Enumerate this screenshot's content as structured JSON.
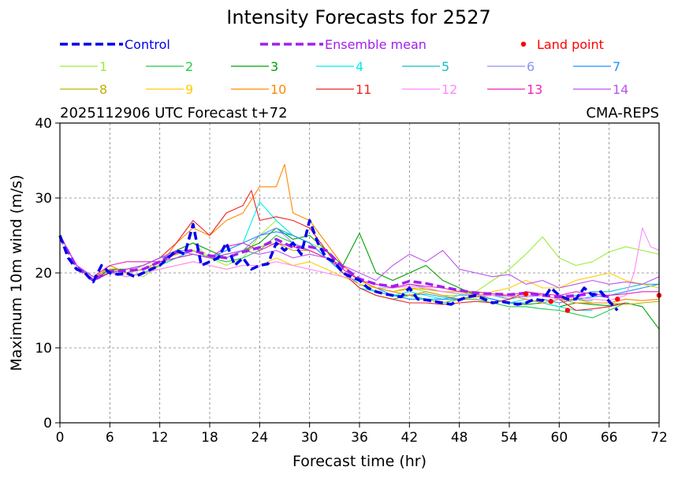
{
  "chart_data": {
    "type": "line",
    "title": "Intensity Forecasts for 2527",
    "subtitle_left": "2025112906 UTC Forecast t+72",
    "subtitle_right": "CMA-REPS",
    "xlabel": "Forecast time (hr)",
    "ylabel": "Maximum 10m wind (m/s)",
    "xlim": [
      0,
      72
    ],
    "ylim": [
      0,
      40
    ],
    "xticks": [
      0,
      6,
      12,
      18,
      24,
      30,
      36,
      42,
      48,
      54,
      60,
      66,
      72
    ],
    "yticks": [
      0,
      10,
      20,
      30,
      40
    ],
    "grid": true,
    "legend": {
      "control_label": "Control",
      "mean_label": "Ensemble mean",
      "land_label": "Land point",
      "control_color": "#0000ee",
      "mean_color": "#a020f0",
      "land_color": "#ff0000"
    },
    "control": {
      "x": [
        0,
        1,
        2,
        3,
        4,
        5,
        6,
        7,
        8,
        9,
        10,
        11,
        12,
        13,
        14,
        15,
        16,
        17,
        18,
        19,
        20,
        21,
        22,
        23,
        24,
        25,
        26,
        27,
        28,
        29,
        30,
        31,
        32,
        33,
        34,
        35,
        36,
        37,
        38,
        39,
        40,
        41,
        42,
        43,
        44,
        45,
        46,
        47,
        48,
        49,
        50,
        51,
        52,
        53,
        54,
        55,
        56,
        57,
        58,
        59,
        60,
        61,
        62,
        63,
        64,
        65,
        66,
        67
      ],
      "y": [
        25,
        22,
        20.5,
        20,
        18.8,
        21,
        20,
        19.8,
        20,
        19.5,
        20,
        20.5,
        21,
        22,
        23,
        22.5,
        26.5,
        21,
        21.5,
        22,
        24,
        21,
        22,
        20.5,
        21,
        21.2,
        24,
        23,
        24,
        22.5,
        27,
        24,
        22,
        21.5,
        20,
        19.5,
        19,
        18,
        17.5,
        17.2,
        17,
        16.8,
        18,
        16.5,
        16.4,
        16.2,
        16,
        15.8,
        16.4,
        16.8,
        17,
        16.5,
        16,
        16.2,
        16,
        15.8,
        16,
        16.5,
        16.3,
        18,
        17,
        16.5,
        16.5,
        18,
        17,
        17.5,
        16.2,
        15
      ]
    },
    "ensemble_mean": {
      "x": [
        0,
        2,
        4,
        6,
        8,
        10,
        12,
        14,
        16,
        18,
        20,
        22,
        24,
        26,
        28,
        30,
        32,
        34,
        36,
        38,
        40,
        42,
        44,
        46,
        48,
        50,
        52,
        54,
        56,
        58,
        60,
        62,
        64,
        66
      ],
      "y": [
        24.8,
        20.8,
        19,
        20.2,
        20.3,
        20.5,
        21.5,
        22.8,
        23,
        22.3,
        22,
        22.8,
        23.4,
        24.5,
        23.4,
        23.5,
        23,
        20.8,
        19.2,
        18.5,
        18.2,
        18.9,
        18.6,
        18.1,
        17.7,
        17.3,
        17.2,
        17.1,
        17.3,
        17,
        16.8,
        17,
        17.2,
        16.8
      ]
    },
    "land_points": {
      "x": [
        56,
        59,
        61,
        67,
        72
      ],
      "y": [
        17.2,
        16.2,
        15,
        16.5,
        17
      ]
    },
    "members": [
      {
        "name": "1",
        "color": "#9aee3a",
        "x": [
          0,
          2,
          4,
          6,
          8,
          10,
          12,
          14,
          16,
          18,
          20,
          22,
          24,
          26,
          28,
          30,
          32,
          34,
          36,
          38,
          40,
          42,
          44,
          46,
          48,
          50,
          52,
          54,
          56,
          58,
          60,
          62,
          64,
          66,
          68,
          70,
          72
        ],
        "y": [
          25,
          21,
          19.5,
          21,
          20,
          19.5,
          21,
          23,
          24,
          22,
          21,
          22,
          25,
          27,
          25,
          24,
          23,
          21,
          19,
          18,
          17.5,
          18,
          17.5,
          17,
          17,
          17.5,
          19,
          20.5,
          22.5,
          24.8,
          22,
          21,
          21.5,
          22.8,
          23.5,
          23,
          22.5
        ]
      },
      {
        "name": "2",
        "color": "#22cc44",
        "x": [
          0,
          2,
          4,
          6,
          8,
          10,
          12,
          14,
          16,
          18,
          20,
          22,
          24,
          26,
          28,
          30,
          32,
          34,
          36,
          38,
          40,
          42,
          44,
          46,
          48,
          50,
          52,
          54,
          56,
          58,
          60,
          62,
          64,
          66,
          68
        ],
        "y": [
          25,
          21,
          19,
          20.5,
          20,
          20.5,
          21.5,
          22,
          22.5,
          22,
          21.5,
          22,
          23,
          25,
          24,
          23,
          22,
          20,
          18,
          17,
          16.5,
          17,
          16.5,
          16,
          16.5,
          16.5,
          16,
          15.5,
          15.5,
          15.2,
          15,
          14.5,
          14,
          15,
          16
        ]
      },
      {
        "name": "3",
        "color": "#00a000",
        "x": [
          0,
          2,
          4,
          6,
          8,
          10,
          12,
          14,
          16,
          18,
          20,
          22,
          24,
          26,
          28,
          30,
          32,
          34,
          36,
          38,
          40,
          42,
          44,
          46,
          48,
          50,
          52,
          54,
          56,
          58,
          60,
          62,
          64,
          66,
          68,
          70,
          72
        ],
        "y": [
          25,
          21,
          19,
          20.5,
          20.5,
          21,
          22,
          23,
          24,
          23,
          22,
          23,
          24,
          26,
          24.5,
          25,
          23,
          21,
          25.3,
          20,
          19,
          20,
          21,
          19,
          18,
          17,
          16.5,
          16,
          15.8,
          16,
          15.5,
          16,
          15.8,
          15.6,
          16,
          15.5,
          12.5
        ]
      },
      {
        "name": "4",
        "color": "#00eeee",
        "x": [
          0,
          2,
          4,
          6,
          8,
          10,
          12,
          14,
          16,
          18,
          20,
          22,
          24,
          26,
          28,
          30,
          32,
          34,
          36,
          38,
          40,
          42,
          44,
          46,
          48,
          50,
          52,
          54,
          56,
          58,
          60,
          62,
          64
        ],
        "y": [
          25,
          21,
          19.5,
          20,
          20,
          20.5,
          21,
          22,
          22.5,
          22,
          23,
          24,
          29.5,
          27,
          25,
          24,
          22,
          20,
          18,
          17.5,
          17,
          17.5,
          17,
          16.5,
          17,
          17,
          16.5,
          16,
          16.5,
          16,
          15.5,
          15,
          15
        ]
      },
      {
        "name": "5",
        "color": "#11c0c0",
        "x": [
          0,
          2,
          4,
          6,
          8,
          10,
          12,
          14,
          16,
          18,
          20,
          22,
          24,
          26,
          28,
          30,
          32,
          34,
          36,
          38,
          40,
          42,
          44,
          46,
          48,
          50,
          52,
          54,
          56,
          58,
          60,
          62,
          64,
          66,
          68,
          70,
          72
        ],
        "y": [
          25,
          21,
          19,
          20,
          19.5,
          20,
          21,
          22,
          23,
          22,
          22.5,
          23,
          25,
          26,
          25,
          24,
          22,
          20,
          18.5,
          17.5,
          17,
          17,
          17.2,
          16.8,
          16.5,
          17,
          17,
          16.5,
          17,
          17,
          16.5,
          17,
          17.5,
          17.5,
          18,
          18.5,
          18.5
        ]
      },
      {
        "name": "6",
        "color": "#9090f0",
        "x": [
          0,
          2,
          4,
          6,
          8,
          10,
          12,
          14,
          16,
          18,
          20,
          22,
          24,
          26,
          28,
          30,
          32,
          34,
          36,
          38,
          40,
          42,
          44,
          46,
          48,
          50,
          52,
          54,
          56,
          58,
          60,
          62,
          64
        ],
        "y": [
          25,
          21,
          19.5,
          20,
          20,
          21,
          22,
          23,
          23,
          22,
          22,
          23,
          25,
          26,
          24,
          23,
          22,
          21,
          19,
          18,
          18,
          18.5,
          18,
          17.5,
          17.5,
          17,
          17.2,
          17,
          16.8,
          17,
          16.5,
          16.5,
          16.3
        ]
      },
      {
        "name": "7",
        "color": "#1e90ff",
        "x": [
          0,
          2,
          4,
          6,
          8,
          10,
          12,
          14,
          16,
          18,
          20,
          22,
          24,
          26,
          28,
          30,
          32,
          34,
          36,
          38,
          40,
          42,
          44,
          46,
          48,
          50,
          52,
          54,
          56,
          58,
          60,
          62,
          64,
          66,
          68,
          70,
          72
        ],
        "y": [
          25,
          21,
          19,
          20,
          20.5,
          21,
          22,
          22.5,
          23,
          22,
          23,
          24,
          25,
          25.5,
          25,
          24,
          22,
          20,
          18.5,
          18,
          17,
          16.5,
          16.5,
          16.5,
          16.5,
          17,
          16.5,
          16,
          16,
          16.5,
          16,
          16.5,
          16.8,
          17,
          17.5,
          18,
          18.5
        ]
      },
      {
        "name": "8",
        "color": "#bdb000",
        "x": [
          0,
          2,
          4,
          6,
          8,
          10,
          12,
          14,
          16,
          18,
          20,
          22,
          24,
          26,
          28,
          30,
          32,
          34,
          36,
          38,
          40,
          42,
          44,
          46,
          48,
          50,
          52,
          54,
          56,
          58,
          60,
          62,
          64,
          66,
          68,
          70,
          72
        ],
        "y": [
          25,
          21,
          19.5,
          20.5,
          20,
          20.5,
          21.5,
          22.5,
          23,
          22,
          22.5,
          23,
          23.5,
          24,
          23,
          23,
          22,
          20.5,
          19,
          18,
          17.5,
          18,
          17.8,
          17.5,
          17.2,
          17,
          17,
          16.8,
          17,
          17,
          16.5,
          16.5,
          16,
          16,
          15.8,
          16,
          16.2
        ]
      },
      {
        "name": "9",
        "color": "#ffcc00",
        "x": [
          0,
          2,
          4,
          6,
          8,
          10,
          12,
          14,
          16,
          18,
          20,
          22,
          24,
          26,
          28,
          30,
          32,
          34,
          36,
          38,
          40,
          42,
          44,
          46,
          48,
          50,
          52,
          54,
          56,
          58,
          60,
          62,
          64,
          66,
          68,
          70,
          72
        ],
        "y": [
          25,
          21,
          19,
          20,
          19.5,
          20,
          20.5,
          21,
          21.5,
          21,
          20.5,
          21,
          21,
          22,
          21,
          21.5,
          20.5,
          19.5,
          18.5,
          18,
          17.5,
          17.8,
          18,
          17.5,
          17.5,
          17,
          17.5,
          18,
          19,
          18,
          18,
          19,
          19.5,
          20,
          19,
          18.5,
          18
        ]
      },
      {
        "name": "10",
        "color": "#ff8800",
        "x": [
          0,
          2,
          4,
          6,
          8,
          10,
          12,
          14,
          16,
          18,
          20,
          22,
          24,
          26,
          27,
          28,
          30,
          32,
          34,
          36,
          38,
          40,
          42,
          44,
          46,
          48,
          50,
          52,
          54,
          56,
          58,
          60,
          62,
          64,
          66,
          68,
          70,
          72
        ],
        "y": [
          25,
          21,
          19,
          21,
          20,
          20.5,
          21,
          24,
          26,
          25,
          27,
          28,
          31.5,
          31.5,
          34.5,
          28,
          27,
          24,
          21,
          19,
          18,
          17.5,
          17,
          17.5,
          17,
          16.5,
          16.8,
          17,
          17,
          16.5,
          16,
          16.5,
          16,
          16,
          16,
          16.5,
          16.3,
          16.5
        ]
      },
      {
        "name": "11",
        "color": "#ee2222",
        "x": [
          0,
          2,
          4,
          6,
          8,
          10,
          12,
          14,
          16,
          18,
          20,
          22,
          23,
          24,
          26,
          28,
          30,
          32,
          34,
          36,
          38,
          40,
          42,
          44,
          46,
          48,
          50,
          52,
          54,
          56,
          58,
          60,
          62,
          64,
          66,
          68
        ],
        "y": [
          25,
          21,
          19,
          20,
          20.5,
          21,
          22,
          24,
          27,
          25,
          28,
          29,
          31,
          27,
          27.5,
          27,
          26,
          23,
          20,
          18,
          17,
          16.5,
          16,
          16,
          15.8,
          16,
          16.2,
          16,
          16.5,
          17.5,
          17,
          16.5,
          15,
          15.2,
          15.5,
          16
        ]
      },
      {
        "name": "12",
        "color": "#ff88ff",
        "x": [
          0,
          2,
          4,
          6,
          8,
          10,
          12,
          14,
          16,
          18,
          20,
          22,
          24,
          26,
          28,
          30,
          32,
          34,
          36,
          38,
          40,
          42,
          44,
          46,
          48,
          50,
          52,
          54,
          56,
          58,
          60,
          62,
          64,
          66,
          68,
          69,
          70,
          71,
          72
        ],
        "y": [
          25,
          21,
          19.5,
          20,
          19.5,
          20,
          20.5,
          21,
          21.5,
          21,
          20.5,
          21,
          21,
          21.5,
          21,
          20.5,
          20,
          19.5,
          19,
          18.5,
          18,
          18.2,
          18,
          17.5,
          17.2,
          17,
          17,
          16.8,
          17,
          17,
          16.5,
          16.8,
          16.5,
          16.3,
          17,
          20,
          26,
          23.5,
          23
        ]
      },
      {
        "name": "13",
        "color": "#ee22bb",
        "x": [
          0,
          2,
          4,
          6,
          8,
          10,
          12,
          14,
          16,
          18,
          20,
          22,
          24,
          26,
          28,
          30,
          32,
          34,
          36,
          38,
          40,
          42,
          44,
          46,
          48,
          50,
          52,
          54,
          56,
          58,
          60,
          62,
          64,
          66,
          68,
          70,
          72
        ],
        "y": [
          25,
          21,
          19.5,
          21,
          21.5,
          21.5,
          21.5,
          22,
          22.5,
          22,
          23.5,
          24,
          23,
          24,
          23.5,
          23,
          22,
          20.5,
          19,
          18.5,
          18,
          18.5,
          18.2,
          18,
          17.5,
          17.5,
          17.2,
          17,
          17.5,
          17.2,
          17,
          17.5,
          17.2,
          17,
          17.2,
          17.5,
          17.5
        ]
      },
      {
        "name": "14",
        "color": "#bb55ee",
        "x": [
          0,
          2,
          4,
          6,
          8,
          10,
          12,
          14,
          16,
          18,
          20,
          22,
          24,
          26,
          28,
          30,
          32,
          34,
          36,
          38,
          40,
          42,
          44,
          46,
          48,
          50,
          52,
          54,
          56,
          58,
          60,
          62,
          64,
          66,
          68,
          70,
          72
        ],
        "y": [
          25,
          21,
          19.5,
          20,
          20.5,
          21,
          22,
          23,
          22.5,
          22,
          22.5,
          23,
          22.5,
          23,
          22,
          22.5,
          22,
          21,
          20,
          19,
          21,
          22.5,
          21.5,
          23,
          20.5,
          20,
          19.5,
          19.8,
          18.5,
          19,
          18,
          18.5,
          19,
          18.5,
          18.8,
          18.5,
          19.5
        ]
      }
    ]
  }
}
